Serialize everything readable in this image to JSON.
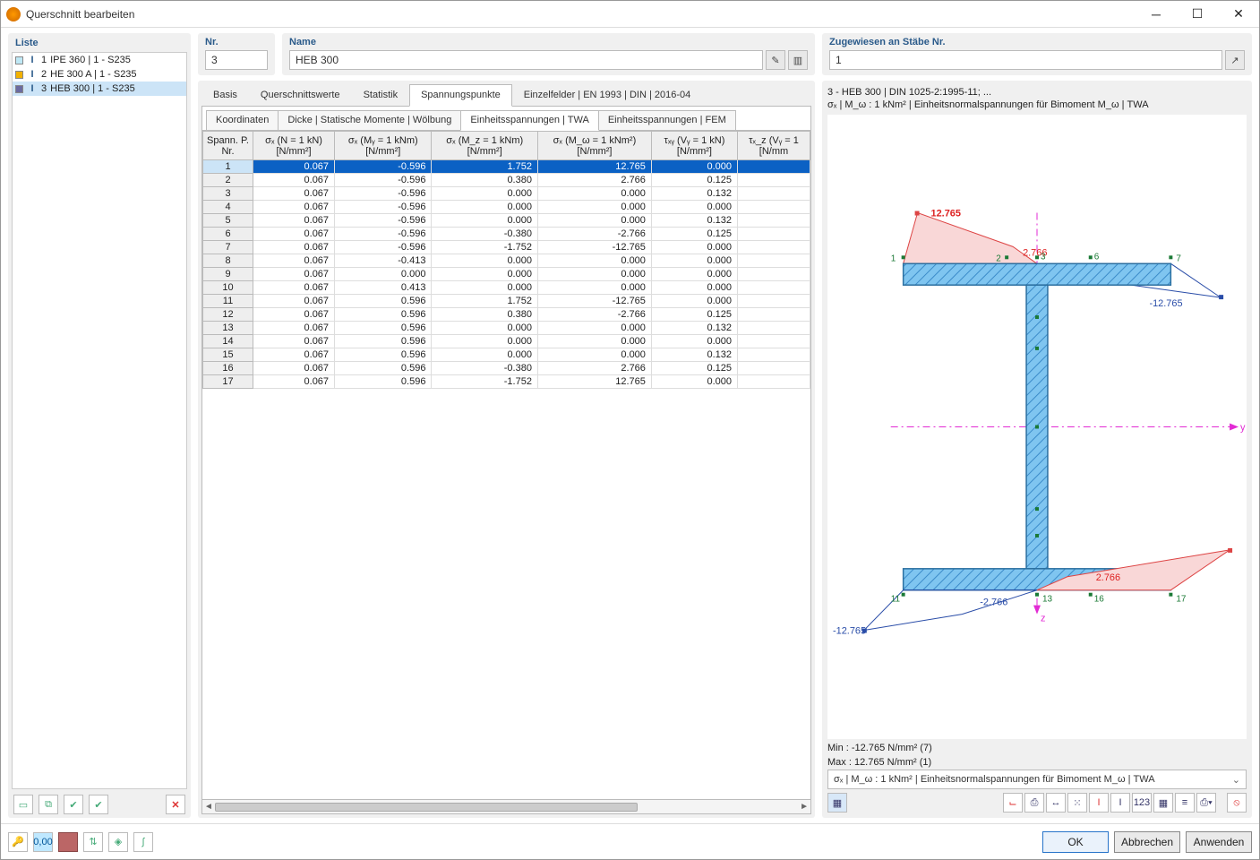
{
  "window": {
    "title": "Querschnitt bearbeiten"
  },
  "list": {
    "header": "Liste",
    "items": [
      {
        "num": "1",
        "name": "IPE 360 | 1 - S235",
        "swatch": "#bfe8f5"
      },
      {
        "num": "2",
        "name": "HE 300 A | 1 - S235",
        "swatch": "#f2b100"
      },
      {
        "num": "3",
        "name": "HEB 300 | 1 - S235",
        "swatch": "#6b6ba0"
      }
    ],
    "selected_index": 2
  },
  "header": {
    "nr_label": "Nr.",
    "nr_value": "3",
    "name_label": "Name",
    "name_value": "HEB 300",
    "assigned_label": "Zugewiesen an Stäbe Nr.",
    "assigned_value": "1"
  },
  "tabs": {
    "items": [
      "Basis",
      "Querschnittswerte",
      "Statistik",
      "Spannungspunkte",
      "Einzelfelder | EN 1993 | DIN | 2016-04"
    ],
    "active": 3
  },
  "subtabs": {
    "items": [
      "Koordinaten",
      "Dicke | Statische Momente | Wölbung",
      "Einheitsspannungen | TWA",
      "Einheitsspannungen | FEM"
    ],
    "active": 2
  },
  "table": {
    "columns": [
      "Spann. P.\nNr.",
      "σₓ (N = 1 kN)\n[N/mm²]",
      "σₓ (Mᵧ = 1 kNm)\n[N/mm²]",
      "σₓ (M_z = 1 kNm)\n[N/mm²]",
      "σₓ (M_ω = 1 kNm²)\n[N/mm²]",
      "τₓᵧ (Vᵧ = 1 kN)\n[N/mm²]",
      "τₓ_z (Vᵧ = 1\n[N/mm"
    ],
    "rows": [
      [
        "1",
        "0.067",
        "-0.596",
        "1.752",
        "12.765",
        "0.000",
        ""
      ],
      [
        "2",
        "0.067",
        "-0.596",
        "0.380",
        "2.766",
        "0.125",
        ""
      ],
      [
        "3",
        "0.067",
        "-0.596",
        "0.000",
        "0.000",
        "0.132",
        ""
      ],
      [
        "4",
        "0.067",
        "-0.596",
        "0.000",
        "0.000",
        "0.000",
        ""
      ],
      [
        "5",
        "0.067",
        "-0.596",
        "0.000",
        "0.000",
        "0.132",
        ""
      ],
      [
        "6",
        "0.067",
        "-0.596",
        "-0.380",
        "-2.766",
        "0.125",
        ""
      ],
      [
        "7",
        "0.067",
        "-0.596",
        "-1.752",
        "-12.765",
        "0.000",
        ""
      ],
      [
        "8",
        "0.067",
        "-0.413",
        "0.000",
        "0.000",
        "0.000",
        ""
      ],
      [
        "9",
        "0.067",
        "0.000",
        "0.000",
        "0.000",
        "0.000",
        ""
      ],
      [
        "10",
        "0.067",
        "0.413",
        "0.000",
        "0.000",
        "0.000",
        ""
      ],
      [
        "11",
        "0.067",
        "0.596",
        "1.752",
        "-12.765",
        "0.000",
        ""
      ],
      [
        "12",
        "0.067",
        "0.596",
        "0.380",
        "-2.766",
        "0.125",
        ""
      ],
      [
        "13",
        "0.067",
        "0.596",
        "0.000",
        "0.000",
        "0.132",
        ""
      ],
      [
        "14",
        "0.067",
        "0.596",
        "0.000",
        "0.000",
        "0.000",
        ""
      ],
      [
        "15",
        "0.067",
        "0.596",
        "0.000",
        "0.000",
        "0.132",
        ""
      ],
      [
        "16",
        "0.067",
        "0.596",
        "-0.380",
        "2.766",
        "0.125",
        ""
      ],
      [
        "17",
        "0.067",
        "0.596",
        "-1.752",
        "12.765",
        "0.000",
        ""
      ]
    ],
    "selected_row": 0
  },
  "figure": {
    "title_line1": "3 - HEB 300 | DIN 1025-2:1995-11; ...",
    "title_line2": "σₓ | M_ω : 1 kNm² | Einheitsnormalspannungen für Bimoment M_ω | TWA",
    "min_label": "Min : -12.765 N/mm² (7)",
    "max_label": "Max :  12.765 N/mm² (1)",
    "dropdown": "σₓ | M_ω : 1 kNm² | Einheitsnormalspannungen für Bimoment M_ω | TWA",
    "colors": {
      "beam_fill": "#7fc5f0",
      "beam_hatch": "#3b8bc9",
      "beam_stroke": "#2b6fa0",
      "pos_fill": "#f9d7d7",
      "pos_stroke": "#d44",
      "neg_stroke": "#2a4da8",
      "axis": "#e22ad4",
      "node": "#1b7a36",
      "node_text": "#1b7a36",
      "pos_text": "#d22",
      "neg_text": "#2a4da8"
    },
    "annotations": {
      "p1": "12.765",
      "p2": "2.766",
      "n1": "-2.766",
      "n2": "-12.765",
      "b1": "-2.766",
      "b2": "2.766",
      "bl": "-12.765",
      "y": "y",
      "z": "z",
      "nodes": [
        "1",
        "2",
        "3",
        "6",
        "7",
        "11",
        "13",
        "16",
        "17"
      ]
    }
  },
  "buttons": {
    "ok": "OK",
    "cancel": "Abbrechen",
    "apply": "Anwenden"
  }
}
